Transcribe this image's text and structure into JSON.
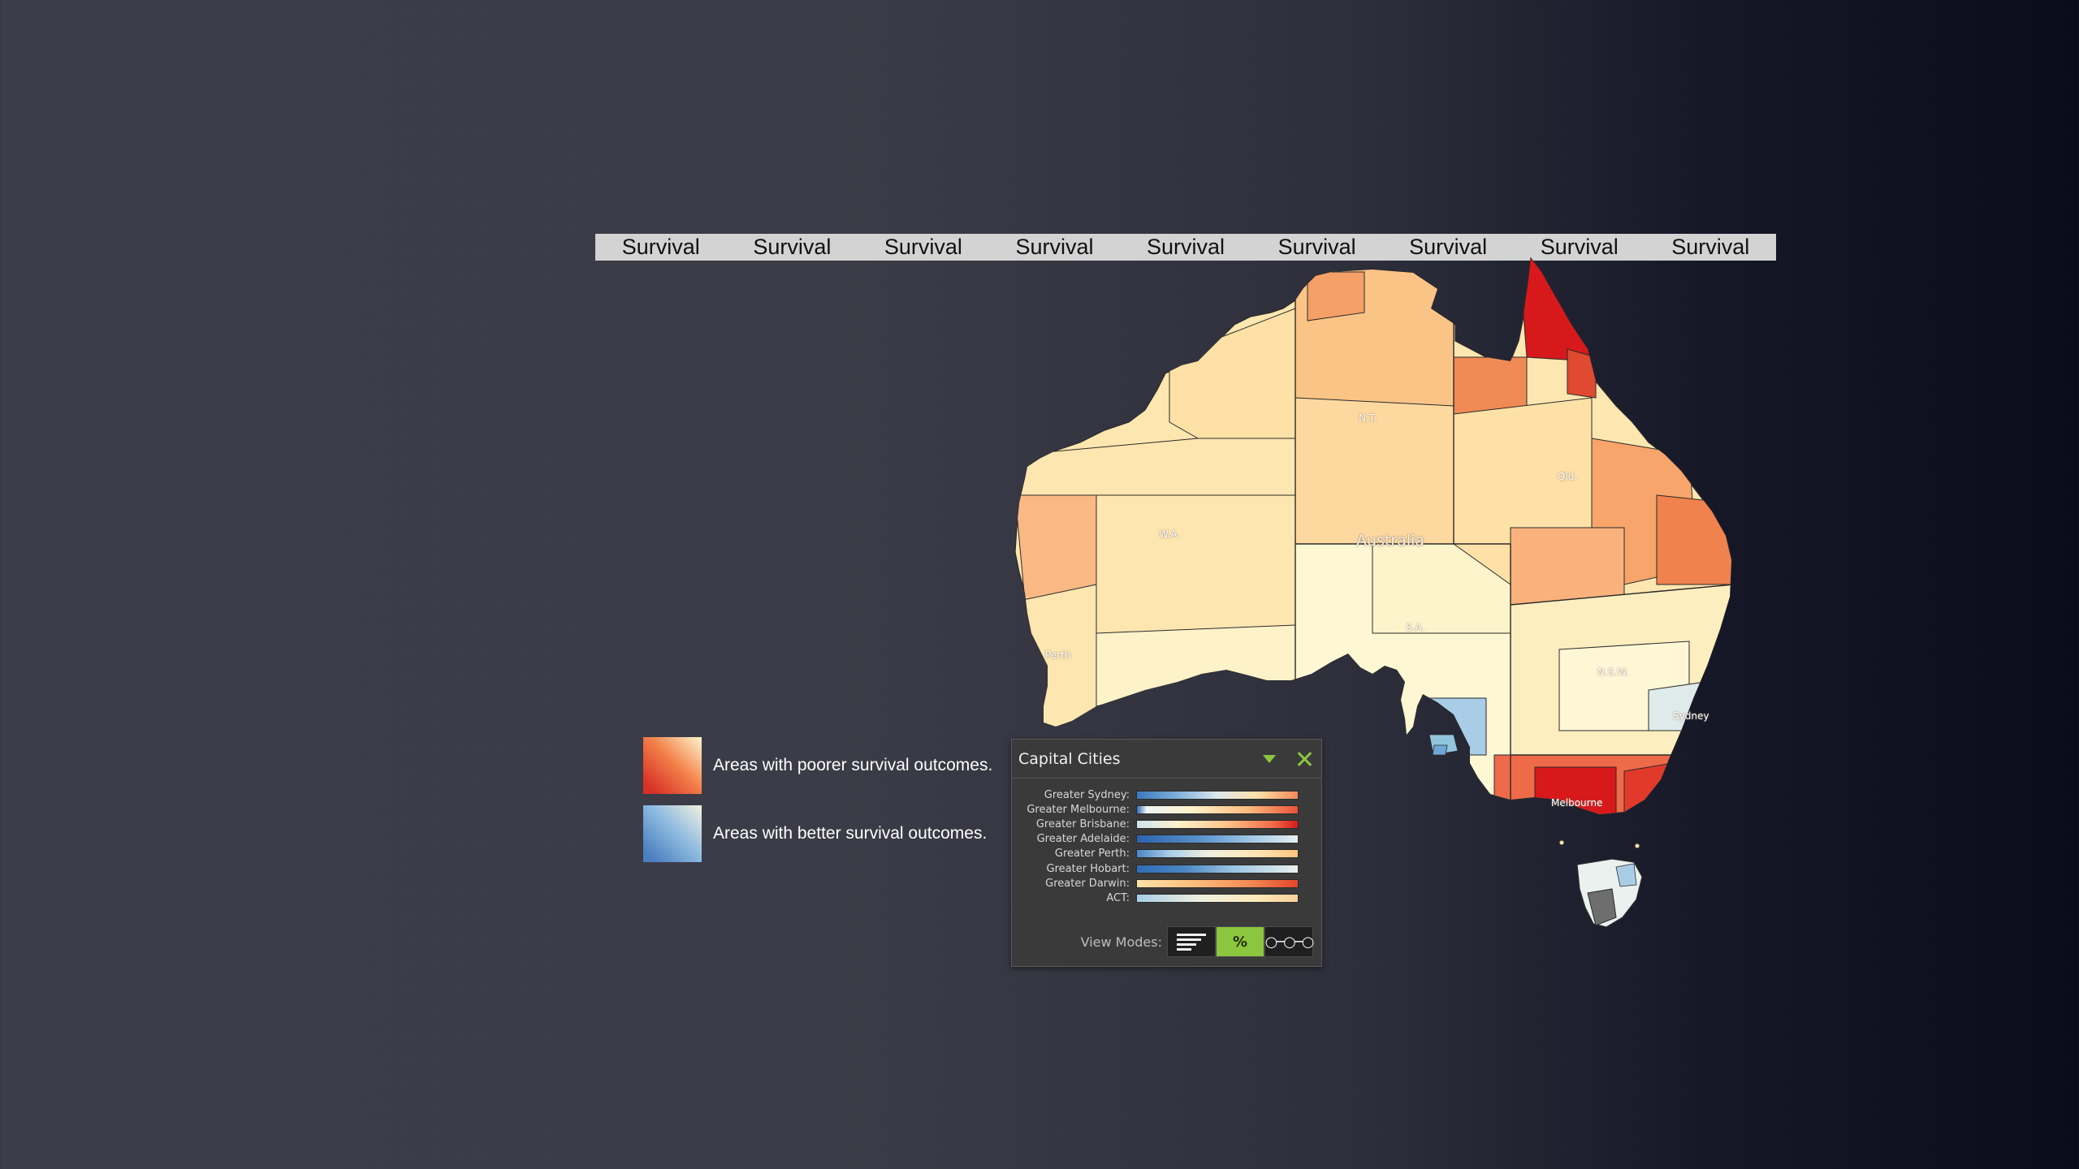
{
  "topbar": {
    "items": [
      "Survival",
      "Survival",
      "Survival",
      "Survival",
      "Survival",
      "Survival",
      "Survival",
      "Survival",
      "Survival"
    ]
  },
  "map": {
    "labels": {
      "country": "Australia",
      "nt": "N.T.",
      "wa": "W.A.",
      "qld": "Qld.",
      "sa": "S.A.",
      "nsw": "N.S.W.",
      "perth": "Perth",
      "sydney": "Sydney",
      "melbourne": "Melbourne"
    },
    "colors": {
      "high_risk": "#d7191c",
      "orange": "#f09060",
      "light_orange": "#fbc487",
      "pale": "#fde6b0",
      "paler": "#fef6d2",
      "blue": "#92c5de"
    }
  },
  "legend": {
    "poorer": "Areas with poorer survival outcomes.",
    "better": "Areas with better survival outcomes."
  },
  "panel": {
    "title": "Capital Cities",
    "cities": [
      {
        "label": "Greater Sydney:",
        "gradient": "linear-gradient(90deg,#3a78bd 0%,#7fb0dc 25%,#dbe8ec 50%,#fde0a8 75%,#f4895c 100%)"
      },
      {
        "label": "Greater Melbourne:",
        "gradient": "linear-gradient(90deg,#2f6cb5 0%,#eef4f4 6%,#fdf1c8 35%,#fbb97c 70%,#e8533a 100%)"
      },
      {
        "label": "Greater Brisbane:",
        "gradient": "linear-gradient(90deg,#cfe3ee 0%,#fdf3cf 25%,#fcc68a 55%,#ef6a48 85%,#d7191c 100%)"
      },
      {
        "label": "Greater Adelaide:",
        "gradient": "linear-gradient(90deg,#2b63ad 0%,#5b93cc 40%,#a9cde6 75%,#e6f0f0 100%)"
      },
      {
        "label": "Greater Perth:",
        "gradient": "linear-gradient(90deg,#4a86c5 0%,#a8cde6 20%,#f2efde 45%,#fde5b2 75%,#fcc37f 100%)"
      },
      {
        "label": "Greater Hobart:",
        "gradient": "linear-gradient(90deg,#2f6cb5 0%,#4c86c4 30%,#9cc5e2 60%,#eaf1ef 100%)"
      },
      {
        "label": "Greater Darwin:",
        "gradient": "linear-gradient(90deg,#fde2a8 0%,#fbbf7d 35%,#f58a55 70%,#e2452c 100%)"
      },
      {
        "label": "ACT:",
        "gradient": "linear-gradient(90deg,#a8cde6 0%,#f0f0e0 40%,#fde8b8 75%,#fcd09a 100%)"
      }
    ],
    "view_modes_label": "View Modes:",
    "modes": {
      "bars": "bars",
      "percent": "%",
      "link": "link"
    }
  }
}
